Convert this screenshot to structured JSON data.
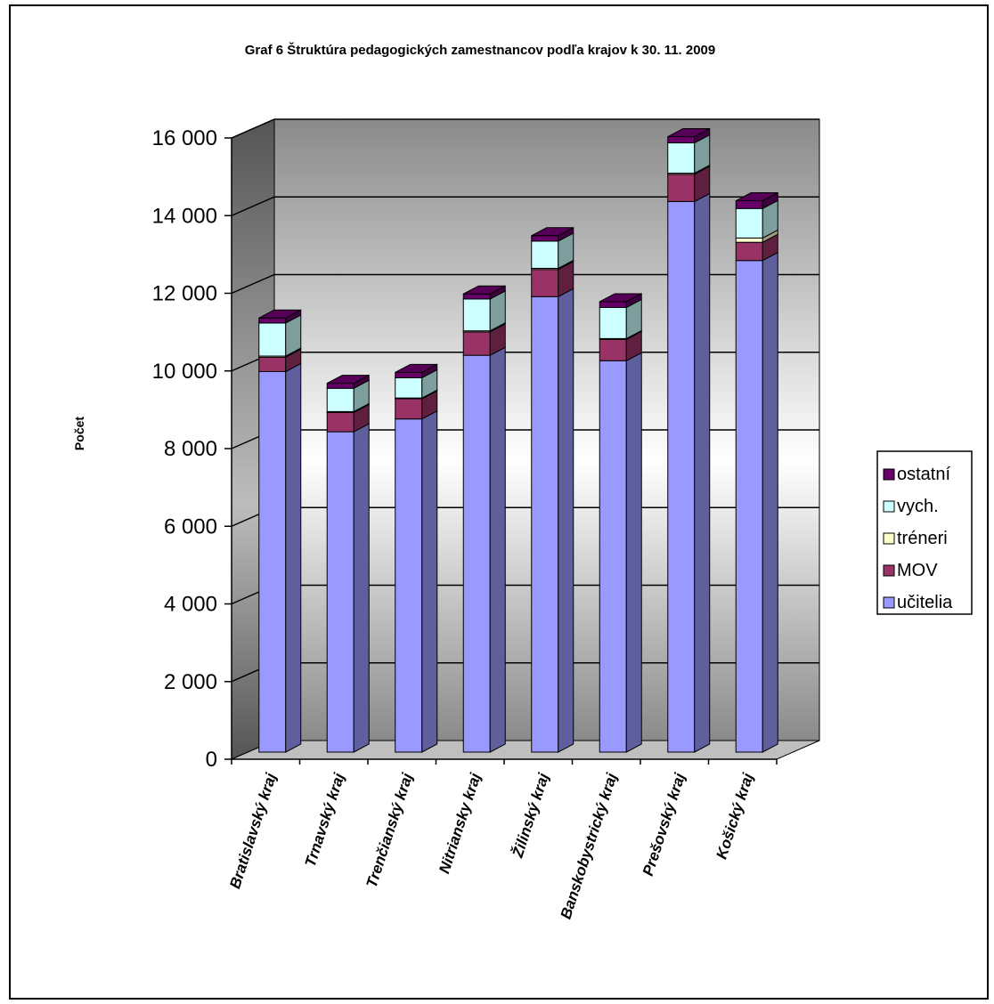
{
  "chart_data": {
    "type": "bar",
    "stacked": true,
    "title": "Graf 6 Štruktúra pedagogických zamestnancov podľa krajov k 30. 11. 2009",
    "xlabel": "",
    "ylabel": "Počet",
    "ylim": [
      0,
      16000
    ],
    "yticks": [
      "0",
      "2 000",
      "4 000",
      "6 000",
      "8 000",
      "10 000",
      "12 000",
      "14 000",
      "16 000"
    ],
    "grid": true,
    "legend_position": "right",
    "categories": [
      "Bratislavský kraj",
      "Trnavský kraj",
      "Trenčianský kraj",
      "Nitriansky kraj",
      "Žilinský kraj",
      "Banskobystrický kraj",
      "Prešovský kraj",
      "Košický kraj"
    ],
    "series": [
      {
        "name": "učitelia",
        "color": "#9999ff",
        "values": [
          9800,
          8250,
          8580,
          10220,
          11730,
          10080,
          14180,
          12660
        ]
      },
      {
        "name": "MOV",
        "color": "#993366",
        "values": [
          370,
          500,
          520,
          600,
          700,
          550,
          700,
          470
        ]
      },
      {
        "name": "tréneri",
        "color": "#ffffcc",
        "values": [
          30,
          20,
          20,
          30,
          30,
          20,
          30,
          110
        ]
      },
      {
        "name": "vych.",
        "color": "#ccffff",
        "values": [
          850,
          600,
          520,
          820,
          700,
          800,
          780,
          760
        ]
      },
      {
        "name": "ostatní",
        "color": "#660066",
        "values": [
          130,
          130,
          140,
          130,
          140,
          150,
          160,
          200
        ]
      }
    ]
  }
}
